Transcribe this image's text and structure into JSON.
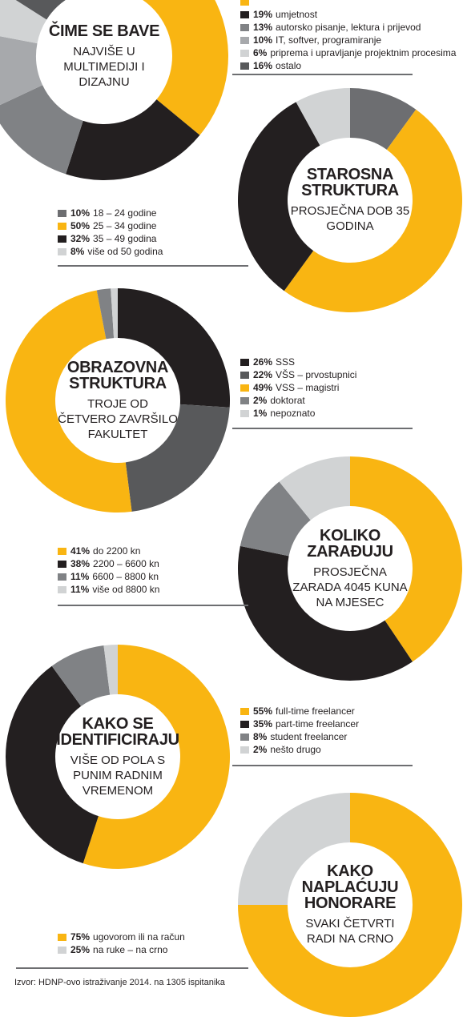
{
  "chart_data": [
    {
      "type": "donut",
      "title": "ČIME SE BAVE",
      "subtitle": "NAJVIŠE U MULTIMEDIJI I DIZAJNU",
      "categories": [
        null,
        "umjetnost",
        "autorsko pisanje, lektura i prijevod",
        "IT, softver, programiranje",
        "priprema i upravljanje projektnim procesima",
        "ostalo"
      ],
      "values": [
        36,
        19,
        13,
        10,
        6,
        16
      ],
      "value_labels": [
        null,
        "19%",
        "13%",
        "10%",
        "6%",
        "16%"
      ],
      "colors": [
        "#f9b512",
        "#231f20",
        "#808285",
        "#a7a9ac",
        "#d1d3d4",
        "#58595b"
      ]
    },
    {
      "type": "donut",
      "title": "STAROSNA STRUKTURA",
      "subtitle": "PROSJEČNA DOB 35 GODINA",
      "categories": [
        "18 – 24 godine",
        "25 – 34 godine",
        "35 – 49 godina",
        "više od 50 godina"
      ],
      "values": [
        10,
        50,
        32,
        8
      ],
      "value_labels": [
        "10%",
        "50%",
        "32%",
        "8%"
      ],
      "colors": [
        "#6d6e71",
        "#f9b512",
        "#231f20",
        "#d1d3d4"
      ]
    },
    {
      "type": "donut",
      "title": "OBRAZOVNA STRUKTURA",
      "subtitle": "TROJE OD ČETVERO ZAVRŠILO FAKULTET",
      "categories": [
        "SSS",
        "VŠS – prvostupnici",
        "VSS – magistri",
        "doktorat",
        "nepoznato"
      ],
      "values": [
        26,
        22,
        49,
        2,
        1
      ],
      "value_labels": [
        "26%",
        "22%",
        "49%",
        "2%",
        "1%"
      ],
      "colors": [
        "#231f20",
        "#58595b",
        "#f9b512",
        "#808285",
        "#d1d3d4"
      ]
    },
    {
      "type": "donut",
      "title": "KOLIKO ZARAĐUJU",
      "subtitle": "PROSJEČNA ZARADA 4045 KUNA NA MJESEC",
      "categories": [
        "do 2200 kn",
        "2200 – 6600 kn",
        "6600 – 8800 kn",
        "više od 8800 kn"
      ],
      "values": [
        41,
        38,
        11,
        11
      ],
      "value_labels": [
        "41%",
        "38%",
        "11%",
        "11%"
      ],
      "colors": [
        "#f9b512",
        "#231f20",
        "#808285",
        "#d1d3d4"
      ]
    },
    {
      "type": "donut",
      "title": "KAKO SE IDENTIFICIRAJU",
      "subtitle": "VIŠE OD POLA S PUNIM RADNIM VREMENOM",
      "categories": [
        "full-time freelancer",
        "part-time freelancer",
        "student freelancer",
        "nešto drugo"
      ],
      "values": [
        55,
        35,
        8,
        2
      ],
      "value_labels": [
        "55%",
        "35%",
        "8%",
        "2%"
      ],
      "colors": [
        "#f9b512",
        "#231f20",
        "#808285",
        "#d1d3d4"
      ]
    },
    {
      "type": "donut",
      "title": "KAKO NAPLAĆUJU HONORARE",
      "subtitle": "SVAKI ČETVRTI RADI NA CRNO",
      "categories": [
        "ugovorom ili na račun",
        "na ruke – na crno"
      ],
      "values": [
        75,
        25
      ],
      "value_labels": [
        "75%",
        "25%"
      ],
      "colors": [
        "#f9b512",
        "#d1d3d4"
      ]
    }
  ],
  "source": "Izvor: HDNP-ovo istraživanje 2014. na 1305 ispitanika"
}
